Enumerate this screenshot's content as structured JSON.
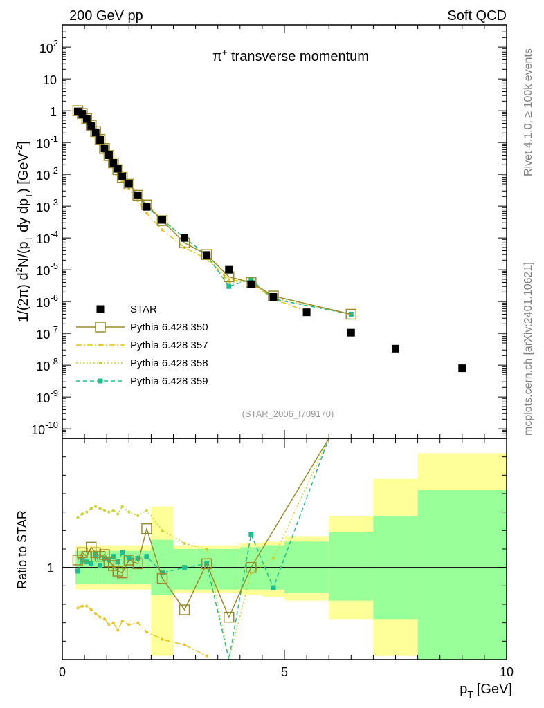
{
  "header": {
    "left_title": "200 GeV pp",
    "right_title": "Soft QCD",
    "side_top": "Rivet 4.1.0, ≥ 100k events",
    "side_bottom": "mcplots.cern.ch [arXiv:2401.10621]"
  },
  "chart_data": [
    {
      "type": "scatter",
      "panel": "main",
      "title": "π⁺ transverse momentum",
      "watermark": "(STAR_2006_I709170)",
      "ylabel": "1/(2π)  d²N/(p_T dy dp_T) [GeV⁻²]",
      "xlim": [
        0,
        10
      ],
      "ylim": [
        5e-11,
        500
      ],
      "yscale": "log",
      "ytick_labels": [
        "10^-10",
        "10^-9",
        "10^-8",
        "10^-7",
        "10^-6",
        "10^-5",
        "10^-4",
        "10^-3",
        "10^-2",
        "10^-1",
        "1",
        "10",
        "10^2"
      ],
      "legend_position": "bottom-left",
      "series": [
        {
          "name": "STAR",
          "color": "#000000",
          "marker": "square-filled",
          "line": "none",
          "x": [
            0.35,
            0.45,
            0.55,
            0.65,
            0.75,
            0.85,
            0.95,
            1.05,
            1.15,
            1.25,
            1.35,
            1.5,
            1.7,
            1.9,
            2.25,
            2.75,
            3.25,
            3.75,
            4.25,
            4.75,
            5.5,
            6.5,
            7.5,
            9.0
          ],
          "y": [
            0.95,
            0.8,
            0.55,
            0.33,
            0.21,
            0.12,
            0.065,
            0.04,
            0.023,
            0.015,
            0.0085,
            0.005,
            0.0022,
            0.00095,
            0.00037,
            0.0001,
            2.9e-05,
            1e-05,
            3.5e-06,
            1.4e-06,
            4.6e-07,
            1.05e-07,
            3.3e-08,
            8e-09
          ]
        },
        {
          "name": "Pythia 6.428 350",
          "color": "#9a8c2a",
          "marker": "square-open",
          "line": "solid",
          "x": [
            0.35,
            0.45,
            0.55,
            0.65,
            0.75,
            0.85,
            0.95,
            1.05,
            1.15,
            1.25,
            1.35,
            1.5,
            1.7,
            1.9,
            2.25,
            2.75,
            3.25,
            3.75,
            4.25,
            4.75,
            6.5
          ],
          "y": [
            1.0,
            0.82,
            0.57,
            0.35,
            0.22,
            0.125,
            0.065,
            0.039,
            0.023,
            0.014,
            0.008,
            0.0049,
            0.0022,
            0.0011,
            0.00035,
            7e-05,
            3e-05,
            6e-06,
            4e-06,
            1.5e-06,
            4e-07
          ]
        },
        {
          "name": "Pythia 6.428 357",
          "color": "#e6c419",
          "marker": "dot",
          "line": "dashdot",
          "x": [
            0.35,
            0.45,
            0.55,
            0.65,
            0.75,
            0.85,
            0.95,
            1.05,
            1.15,
            1.25,
            1.35,
            1.5,
            1.7,
            1.9,
            2.25,
            2.75,
            3.25,
            3.75,
            4.25,
            4.75,
            5.5
          ],
          "y": [
            0.9,
            0.7,
            0.45,
            0.26,
            0.16,
            0.09,
            0.048,
            0.028,
            0.016,
            0.01,
            0.006,
            0.0035,
            0.0015,
            0.0006,
            0.00018,
            5e-05,
            2.2e-05,
            5e-06,
            4e-06,
            1.2e-06,
            5e-07
          ]
        },
        {
          "name": "Pythia 6.428 358",
          "color": "#c9d22a",
          "marker": "dot",
          "line": "dotted",
          "x": [
            0.35,
            0.45,
            0.55,
            0.65,
            0.75,
            0.85,
            0.95,
            1.05,
            1.15,
            1.25,
            1.35,
            1.5,
            1.7,
            1.9,
            2.25,
            2.75,
            3.25,
            3.75,
            4.25,
            4.75,
            6.5
          ],
          "y": [
            1.0,
            0.86,
            0.6,
            0.36,
            0.23,
            0.13,
            0.07,
            0.042,
            0.025,
            0.016,
            0.0092,
            0.0055,
            0.0024,
            0.0011,
            0.0004,
            0.0001,
            2.9e-05,
            4e-06,
            4.5e-06,
            1.3e-06,
            4e-07
          ]
        },
        {
          "name": "Pythia 6.428 359",
          "color": "#1fbf8f",
          "marker": "square-filled-small",
          "line": "dashed",
          "x": [
            0.35,
            0.45,
            0.55,
            0.65,
            0.75,
            0.85,
            0.95,
            1.05,
            1.15,
            1.25,
            1.35,
            1.5,
            1.7,
            1.9,
            2.25,
            2.75,
            3.25,
            3.75,
            4.25,
            4.75,
            6.5
          ],
          "y": [
            0.95,
            0.8,
            0.55,
            0.33,
            0.21,
            0.12,
            0.065,
            0.04,
            0.023,
            0.015,
            0.0085,
            0.005,
            0.0022,
            0.00095,
            0.00037,
            0.0001,
            2.9e-05,
            3e-06,
            5e-06,
            1.2e-06,
            4e-07
          ]
        }
      ]
    },
    {
      "type": "line",
      "panel": "ratio",
      "ylabel": "Ratio to STAR",
      "xlabel": "p_T [GeV]",
      "xlim": [
        0,
        10
      ],
      "ylim": [
        0.5,
        1.7
      ],
      "reference_line": 1,
      "ytick_labels": [
        "1"
      ],
      "xtick_labels": [
        "0",
        "5",
        "10"
      ],
      "bands": [
        {
          "x_lo": 0.3,
          "x_hi": 0.4,
          "stat_lo": 0.91,
          "stat_hi": 1.09,
          "tot_lo": 0.88,
          "tot_hi": 1.12
        },
        {
          "x_lo": 0.4,
          "x_hi": 0.5,
          "stat_lo": 0.91,
          "stat_hi": 1.09,
          "tot_lo": 0.88,
          "tot_hi": 1.12
        },
        {
          "x_lo": 0.5,
          "x_hi": 0.6,
          "stat_lo": 0.91,
          "stat_hi": 1.09,
          "tot_lo": 0.88,
          "tot_hi": 1.12
        },
        {
          "x_lo": 0.6,
          "x_hi": 0.7,
          "stat_lo": 0.91,
          "stat_hi": 1.09,
          "tot_lo": 0.88,
          "tot_hi": 1.12
        },
        {
          "x_lo": 0.7,
          "x_hi": 0.8,
          "stat_lo": 0.91,
          "stat_hi": 1.09,
          "tot_lo": 0.88,
          "tot_hi": 1.12
        },
        {
          "x_lo": 0.8,
          "x_hi": 0.9,
          "stat_lo": 0.91,
          "stat_hi": 1.09,
          "tot_lo": 0.88,
          "tot_hi": 1.12
        },
        {
          "x_lo": 0.9,
          "x_hi": 1.0,
          "stat_lo": 0.91,
          "stat_hi": 1.09,
          "tot_lo": 0.88,
          "tot_hi": 1.12
        },
        {
          "x_lo": 1.0,
          "x_hi": 1.1,
          "stat_lo": 0.91,
          "stat_hi": 1.09,
          "tot_lo": 0.88,
          "tot_hi": 1.12
        },
        {
          "x_lo": 1.1,
          "x_hi": 1.2,
          "stat_lo": 0.91,
          "stat_hi": 1.09,
          "tot_lo": 0.88,
          "tot_hi": 1.12
        },
        {
          "x_lo": 1.2,
          "x_hi": 1.3,
          "stat_lo": 0.91,
          "stat_hi": 1.09,
          "tot_lo": 0.88,
          "tot_hi": 1.12
        },
        {
          "x_lo": 1.3,
          "x_hi": 1.4,
          "stat_lo": 0.91,
          "stat_hi": 1.09,
          "tot_lo": 0.88,
          "tot_hi": 1.12
        },
        {
          "x_lo": 1.4,
          "x_hi": 1.6,
          "stat_lo": 0.91,
          "stat_hi": 1.09,
          "tot_lo": 0.88,
          "tot_hi": 1.12
        },
        {
          "x_lo": 1.6,
          "x_hi": 1.8,
          "stat_lo": 0.91,
          "stat_hi": 1.09,
          "tot_lo": 0.88,
          "tot_hi": 1.12
        },
        {
          "x_lo": 1.8,
          "x_hi": 2.0,
          "stat_lo": 0.91,
          "stat_hi": 1.09,
          "tot_lo": 0.88,
          "tot_hi": 1.12
        },
        {
          "x_lo": 2.0,
          "x_hi": 2.5,
          "stat_lo": 0.85,
          "stat_hi": 1.15,
          "tot_lo": 0.52,
          "tot_hi": 1.33
        },
        {
          "x_lo": 2.5,
          "x_hi": 3.0,
          "stat_lo": 0.88,
          "stat_hi": 1.1,
          "tot_lo": 0.86,
          "tot_hi": 1.12
        },
        {
          "x_lo": 3.0,
          "x_hi": 3.5,
          "stat_lo": 0.88,
          "stat_hi": 1.1,
          "tot_lo": 0.86,
          "tot_hi": 1.12
        },
        {
          "x_lo": 3.5,
          "x_hi": 4.0,
          "stat_lo": 0.88,
          "stat_hi": 1.1,
          "tot_lo": 0.86,
          "tot_hi": 1.12
        },
        {
          "x_lo": 4.0,
          "x_hi": 4.5,
          "stat_lo": 0.88,
          "stat_hi": 1.11,
          "tot_lo": 0.85,
          "tot_hi": 1.13
        },
        {
          "x_lo": 4.5,
          "x_hi": 5.0,
          "stat_lo": 0.88,
          "stat_hi": 1.12,
          "tot_lo": 0.84,
          "tot_hi": 1.14
        },
        {
          "x_lo": 5.0,
          "x_hi": 6.0,
          "stat_lo": 0.86,
          "stat_hi": 1.14,
          "tot_lo": 0.82,
          "tot_hi": 1.17
        },
        {
          "x_lo": 6.0,
          "x_hi": 7.0,
          "stat_lo": 0.82,
          "stat_hi": 1.19,
          "tot_lo": 0.72,
          "tot_hi": 1.28
        },
        {
          "x_lo": 7.0,
          "x_hi": 8.0,
          "stat_lo": 0.72,
          "stat_hi": 1.28,
          "tot_lo": 0.52,
          "tot_hi": 1.48
        },
        {
          "x_lo": 8.0,
          "x_hi": 10.0,
          "stat_lo": 0.5,
          "stat_hi": 1.42,
          "tot_lo": 0.5,
          "tot_hi": 1.62
        }
      ],
      "series": [
        {
          "name": "Pythia 6.428 350",
          "color": "#9a8c2a",
          "marker": "square-open",
          "line": "solid",
          "x": [
            0.35,
            0.45,
            0.55,
            0.65,
            0.75,
            0.85,
            0.95,
            1.05,
            1.15,
            1.25,
            1.35,
            1.5,
            1.7,
            1.9,
            2.25,
            2.75,
            3.25,
            3.75,
            4.25,
            6.0
          ],
          "y": [
            1.04,
            1.08,
            1.06,
            1.11,
            1.08,
            1.06,
            1.07,
            1.03,
            1.01,
            0.98,
            0.97,
            1.04,
            1.02,
            1.21,
            0.94,
            0.77,
            1.02,
            0.73,
            1.0,
            1.75
          ]
        },
        {
          "name": "Pythia 6.428 357",
          "color": "#e6c419",
          "marker": "dot",
          "line": "dashdot",
          "x": [
            0.35,
            0.45,
            0.55,
            0.65,
            0.75,
            0.85,
            0.95,
            1.05,
            1.15,
            1.25,
            1.35,
            1.5,
            1.7,
            1.9,
            2.25,
            2.75,
            3.25
          ],
          "y": [
            0.78,
            0.79,
            0.79,
            0.77,
            0.75,
            0.73,
            0.72,
            0.69,
            0.7,
            0.66,
            0.71,
            0.69,
            0.7,
            0.65,
            0.61,
            0.58,
            0.52
          ]
        },
        {
          "name": "Pythia 6.428 358",
          "color": "#c9d22a",
          "marker": "dot",
          "line": "dotted",
          "x": [
            0.35,
            0.45,
            0.55,
            0.65,
            0.75,
            0.85,
            0.95,
            1.05,
            1.15,
            1.25,
            1.35,
            1.5,
            1.7,
            1.9,
            2.25,
            2.75,
            3.25,
            3.75,
            4.25,
            4.75,
            6.0
          ],
          "y": [
            1.27,
            1.29,
            1.3,
            1.32,
            1.33,
            1.32,
            1.31,
            1.3,
            1.31,
            1.29,
            1.33,
            1.3,
            1.28,
            1.31,
            1.2,
            1.13,
            1.1,
            0.5,
            0.97,
            1.05,
            1.75
          ]
        },
        {
          "name": "Pythia 6.428 359",
          "color": "#1fbf8f",
          "marker": "square-filled-small",
          "line": "dashed",
          "x": [
            0.35,
            0.45,
            0.55,
            0.65,
            0.75,
            0.85,
            0.95,
            1.05,
            1.15,
            1.25,
            1.35,
            1.5,
            1.7,
            1.9,
            2.25,
            2.75,
            3.25,
            3.75,
            4.25,
            4.75,
            6.0
          ],
          "y": [
            0.98,
            1.04,
            1.03,
            1.02,
            1.07,
            1.01,
            1.05,
            1.04,
            1.06,
            1.03,
            1.08,
            1.05,
            1.05,
            1.06,
            0.97,
            1.0,
            1.02,
            0.5,
            1.18,
            0.89,
            1.75
          ]
        }
      ]
    }
  ]
}
